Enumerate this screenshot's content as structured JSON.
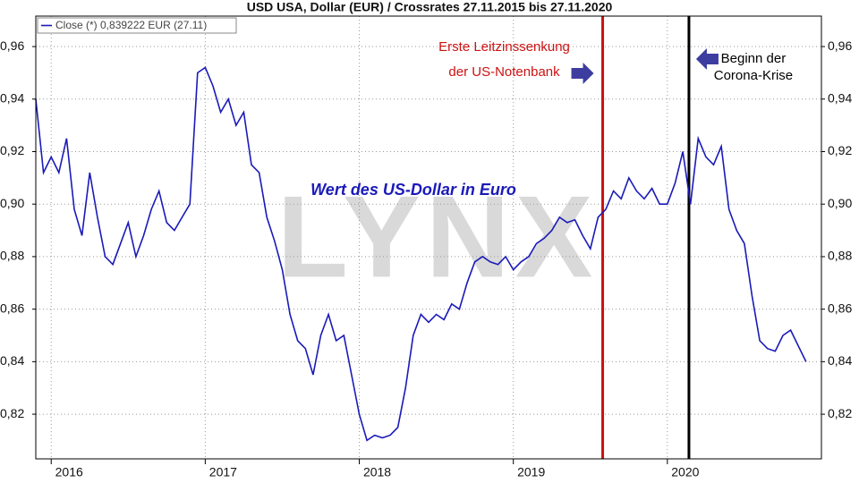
{
  "chart_data": {
    "type": "line",
    "title": "USD USA, Dollar (EUR) / Crossrates 27.11.2015 bis 27.11.2020",
    "legend": "Close (*) 0,839222 EUR (27.11)",
    "annotation": "Wert des US-Dollar in Euro",
    "watermark": "LYNX",
    "grid": true,
    "x": [
      2015.9,
      2015.95,
      2016.0,
      2016.05,
      2016.1,
      2016.15,
      2016.2,
      2016.25,
      2016.3,
      2016.35,
      2016.4,
      2016.45,
      2016.5,
      2016.55,
      2016.6,
      2016.65,
      2016.7,
      2016.75,
      2016.8,
      2016.85,
      2016.9,
      2016.95,
      2017.0,
      2017.05,
      2017.1,
      2017.15,
      2017.2,
      2017.25,
      2017.3,
      2017.35,
      2017.4,
      2017.45,
      2017.5,
      2017.55,
      2017.6,
      2017.65,
      2017.7,
      2017.75,
      2017.8,
      2017.85,
      2017.9,
      2017.95,
      2018.0,
      2018.05,
      2018.1,
      2018.15,
      2018.2,
      2018.25,
      2018.3,
      2018.35,
      2018.4,
      2018.45,
      2018.5,
      2018.55,
      2018.6,
      2018.65,
      2018.7,
      2018.75,
      2018.8,
      2018.85,
      2018.9,
      2018.95,
      2019.0,
      2019.05,
      2019.1,
      2019.15,
      2019.2,
      2019.25,
      2019.3,
      2019.35,
      2019.4,
      2019.45,
      2019.5,
      2019.55,
      2019.6,
      2019.65,
      2019.7,
      2019.75,
      2019.8,
      2019.85,
      2019.9,
      2019.95,
      2020.0,
      2020.05,
      2020.1,
      2020.15,
      2020.2,
      2020.25,
      2020.3,
      2020.35,
      2020.4,
      2020.45,
      2020.5,
      2020.55,
      2020.6,
      2020.65,
      2020.7,
      2020.75,
      2020.8,
      2020.85,
      2020.9
    ],
    "series": [
      {
        "name": "Close",
        "color": "#1a1ab8",
        "values": [
          0.94,
          0.912,
          0.918,
          0.912,
          0.925,
          0.898,
          0.888,
          0.912,
          0.895,
          0.88,
          0.877,
          0.885,
          0.893,
          0.88,
          0.888,
          0.898,
          0.905,
          0.893,
          0.89,
          0.895,
          0.9,
          0.95,
          0.952,
          0.945,
          0.935,
          0.94,
          0.93,
          0.935,
          0.915,
          0.912,
          0.895,
          0.886,
          0.875,
          0.858,
          0.848,
          0.845,
          0.835,
          0.85,
          0.858,
          0.848,
          0.85,
          0.835,
          0.82,
          0.81,
          0.812,
          0.811,
          0.812,
          0.815,
          0.83,
          0.85,
          0.858,
          0.855,
          0.858,
          0.856,
          0.862,
          0.86,
          0.87,
          0.878,
          0.88,
          0.878,
          0.877,
          0.88,
          0.875,
          0.878,
          0.88,
          0.885,
          0.887,
          0.89,
          0.895,
          0.893,
          0.894,
          0.888,
          0.883,
          0.895,
          0.898,
          0.905,
          0.902,
          0.91,
          0.905,
          0.902,
          0.906,
          0.9,
          0.9,
          0.908,
          0.92,
          0.9,
          0.925,
          0.918,
          0.915,
          0.922,
          0.898,
          0.89,
          0.885,
          0.865,
          0.848,
          0.845,
          0.844,
          0.85,
          0.852,
          0.846,
          0.84
        ]
      }
    ],
    "vlines": [
      {
        "x": 2019.58,
        "color": "#cc1111",
        "label": [
          "Erste Leitzinssenkung",
          "der US-Notenbank"
        ]
      },
      {
        "x": 2020.14,
        "color": "#000000",
        "label": [
          "Beginn der",
          "Corona-Krise"
        ]
      }
    ],
    "xlim": [
      2015.9,
      2021.0
    ],
    "xticks": [
      2016,
      2017,
      2018,
      2019,
      2020
    ],
    "ylim": [
      0.803,
      0.9716
    ],
    "yticks": [
      {
        "value": 0.82,
        "label": "0,82"
      },
      {
        "value": 0.84,
        "label": "0,84"
      },
      {
        "value": 0.86,
        "label": "0,86"
      },
      {
        "value": 0.88,
        "label": "0,88"
      },
      {
        "value": 0.9,
        "label": "0,90"
      },
      {
        "value": 0.92,
        "label": "0,92"
      },
      {
        "value": 0.94,
        "label": "0,94"
      },
      {
        "value": 0.96,
        "label": "0,96"
      }
    ]
  }
}
